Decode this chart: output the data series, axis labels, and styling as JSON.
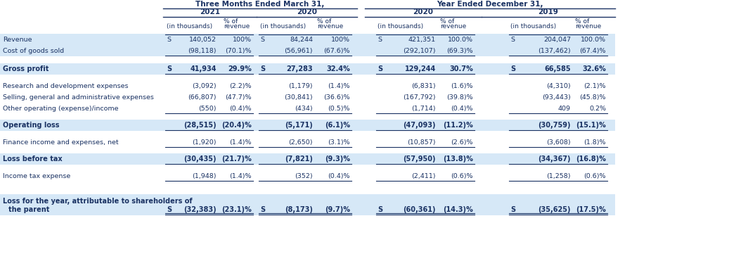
{
  "title_left": "Three Months Ended March 31,",
  "title_right": "Year Ended December 31,",
  "bg_color_highlight": "#d6e8f7",
  "bg_color_white": "#ffffff",
  "text_color": "#1a3263",
  "rows": [
    {
      "label": "Revenue",
      "bold": false,
      "bg": "highlight",
      "has_top_line": true,
      "has_bottom_line": false,
      "dollar1": "S",
      "val1": "140,052",
      "pct1": "100%",
      "dollar2": "S",
      "val2": "84,244",
      "pct2": "100%",
      "dollar3": "S",
      "val3": "421,351",
      "pct3": "100.0%",
      "dollar4": "S",
      "val4": "204,047",
      "pct4": "100.0%"
    },
    {
      "label": "Cost of goods sold",
      "bold": false,
      "bg": "highlight",
      "has_top_line": false,
      "has_bottom_line": true,
      "dollar1": "",
      "val1": "(98,118)",
      "pct1": "(70.1)%",
      "dollar2": "",
      "val2": "(56,961)",
      "pct2": "(67.6)%",
      "dollar3": "",
      "val3": "(292,107)",
      "pct3": "(69.3)%",
      "dollar4": "",
      "val4": "(137,462)",
      "pct4": "(67.4)%"
    },
    {
      "label": "Gross profit",
      "bold": true,
      "bg": "highlight",
      "has_top_line": false,
      "has_bottom_line": true,
      "dollar1": "S",
      "val1": "41,934",
      "pct1": "29.9%",
      "dollar2": "S",
      "val2": "27,283",
      "pct2": "32.4%",
      "dollar3": "S",
      "val3": "129,244",
      "pct3": "30.7%",
      "dollar4": "S",
      "val4": "66,585",
      "pct4": "32.6%"
    },
    {
      "label": "Research and development expenses",
      "bold": false,
      "bg": "white",
      "has_top_line": false,
      "has_bottom_line": false,
      "dollar1": "",
      "val1": "(3,092)",
      "pct1": "(2.2)%",
      "dollar2": "",
      "val2": "(1,179)",
      "pct2": "(1.4)%",
      "dollar3": "",
      "val3": "(6,831)",
      "pct3": "(1.6)%",
      "dollar4": "",
      "val4": "(4,310)",
      "pct4": "(2.1)%"
    },
    {
      "label": "Selling, general and administrative expenses",
      "bold": false,
      "bg": "white",
      "has_top_line": false,
      "has_bottom_line": false,
      "dollar1": "",
      "val1": "(66,807)",
      "pct1": "(47.7)%",
      "dollar2": "",
      "val2": "(30,841)",
      "pct2": "(36.6)%",
      "dollar3": "",
      "val3": "(167,792)",
      "pct3": "(39.8)%",
      "dollar4": "",
      "val4": "(93,443)",
      "pct4": "(45.8)%"
    },
    {
      "label": "Other operating (expense)/income",
      "bold": false,
      "bg": "white",
      "has_top_line": false,
      "has_bottom_line": true,
      "dollar1": "",
      "val1": "(550)",
      "pct1": "(0.4)%",
      "dollar2": "",
      "val2": "(434)",
      "pct2": "(0.5)%",
      "dollar3": "",
      "val3": "(1,714)",
      "pct3": "(0.4)%",
      "dollar4": "",
      "val4": "409",
      "pct4": "0.2%"
    },
    {
      "label": "Operating loss",
      "bold": true,
      "bg": "highlight",
      "has_top_line": false,
      "has_bottom_line": true,
      "dollar1": "",
      "val1": "(28,515)",
      "pct1": "(20.4)%",
      "dollar2": "",
      "val2": "(5,171)",
      "pct2": "(6.1)%",
      "dollar3": "",
      "val3": "(47,093)",
      "pct3": "(11.2)%",
      "dollar4": "",
      "val4": "(30,759)",
      "pct4": "(15.1)%"
    },
    {
      "label": "Finance income and expenses, net",
      "bold": false,
      "bg": "white",
      "has_top_line": false,
      "has_bottom_line": true,
      "dollar1": "",
      "val1": "(1,920)",
      "pct1": "(1.4)%",
      "dollar2": "",
      "val2": "(2,650)",
      "pct2": "(3.1)%",
      "dollar3": "",
      "val3": "(10,857)",
      "pct3": "(2.6)%",
      "dollar4": "",
      "val4": "(3,608)",
      "pct4": "(1.8)%"
    },
    {
      "label": "Loss before tax",
      "bold": true,
      "bg": "highlight",
      "has_top_line": false,
      "has_bottom_line": true,
      "dollar1": "",
      "val1": "(30,435)",
      "pct1": "(21.7)%",
      "dollar2": "",
      "val2": "(7,821)",
      "pct2": "(9.3)%",
      "dollar3": "",
      "val3": "(57,950)",
      "pct3": "(13.8)%",
      "dollar4": "",
      "val4": "(34,367)",
      "pct4": "(16.8)%"
    },
    {
      "label": "Income tax expense",
      "bold": false,
      "bg": "white",
      "has_top_line": false,
      "has_bottom_line": true,
      "dollar1": "",
      "val1": "(1,948)",
      "pct1": "(1.4)%",
      "dollar2": "",
      "val2": "(352)",
      "pct2": "(0.4)%",
      "dollar3": "",
      "val3": "(2,411)",
      "pct3": "(0.6)%",
      "dollar4": "",
      "val4": "(1,258)",
      "pct4": "(0.6)%"
    },
    {
      "label": "Loss for the year, attributable to shareholders of\nthe parent",
      "bold": true,
      "bg": "highlight",
      "has_top_line": false,
      "has_bottom_line": true,
      "dollar1": "S",
      "val1": "(32,383)",
      "pct1": "(23.1)%",
      "dollar2": "S",
      "val2": "(8,173)",
      "pct2": "(9.7)%",
      "dollar3": "S",
      "val3": "(60,361)",
      "pct3": "(14.3)%",
      "dollar4": "S",
      "val4": "(35,625)",
      "pct4": "(17.5)%"
    }
  ]
}
